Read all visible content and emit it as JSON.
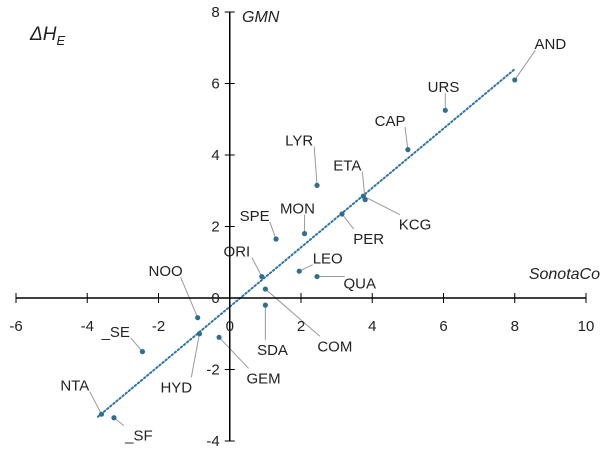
{
  "chart_data": {
    "type": "scatter",
    "xlim": [
      -6,
      10
    ],
    "ylim": [
      -4,
      8
    ],
    "x_ticks": [
      "-6",
      "-4",
      "-2",
      "0",
      "2",
      "4",
      "6",
      "8",
      "10"
    ],
    "y_ticks": [
      "-4",
      "-2",
      "0",
      "2",
      "4",
      "6",
      "8"
    ],
    "x_axis_label": "SonotaCo",
    "y_axis_label_top": "GMN",
    "y_axis_label_main": "ΔH",
    "y_axis_label_sub": "E",
    "grid": false,
    "point_color": "#2e6f90",
    "trendline": {
      "style": "dotted",
      "color": "#2e74a8",
      "x_range": [
        -3.7,
        8
      ]
    },
    "points": [
      {
        "name": "AND",
        "x": 8.0,
        "y": 6.1,
        "label_x": 9.0,
        "label_y": 7.1
      },
      {
        "name": "URS",
        "x": 6.05,
        "y": 5.25,
        "label_x": 6.0,
        "label_y": 5.9
      },
      {
        "name": "CAP",
        "x": 5.0,
        "y": 4.15,
        "label_x": 4.5,
        "label_y": 4.95
      },
      {
        "name": "LYR",
        "x": 2.45,
        "y": 3.15,
        "label_x": 1.95,
        "label_y": 4.4
      },
      {
        "name": "ETA",
        "x": 3.8,
        "y": 2.75,
        "label_x": 3.3,
        "label_y": 3.7
      },
      {
        "name": "KCG",
        "x": 3.75,
        "y": 2.85,
        "label_x": 5.2,
        "label_y": 2.05
      },
      {
        "name": "MON",
        "x": 2.1,
        "y": 1.8,
        "label_x": 1.9,
        "label_y": 2.5
      },
      {
        "name": "SPE",
        "x": 1.3,
        "y": 1.65,
        "label_x": 0.7,
        "label_y": 2.3
      },
      {
        "name": "PER",
        "x": 3.15,
        "y": 2.35,
        "label_x": 3.9,
        "label_y": 1.65
      },
      {
        "name": "ORI",
        "x": 0.9,
        "y": 0.6,
        "label_x": 0.2,
        "label_y": 1.3
      },
      {
        "name": "LEO",
        "x": 1.95,
        "y": 0.75,
        "label_x": 2.75,
        "label_y": 1.1
      },
      {
        "name": "QUA",
        "x": 2.45,
        "y": 0.6,
        "label_x": 3.65,
        "label_y": 0.4
      },
      {
        "name": "NOO",
        "x": -0.9,
        "y": -0.55,
        "label_x": -1.8,
        "label_y": 0.75
      },
      {
        "name": "_SE",
        "x": -2.45,
        "y": -1.5,
        "label_x": -3.2,
        "label_y": -0.95
      },
      {
        "name": "HYD",
        "x": -0.85,
        "y": -1.0,
        "label_x": -1.5,
        "label_y": -2.5
      },
      {
        "name": "GEM",
        "x": -0.3,
        "y": -1.1,
        "label_x": 0.95,
        "label_y": -2.25
      },
      {
        "name": "SDA",
        "x": 1.0,
        "y": -0.2,
        "label_x": 1.2,
        "label_y": -1.45
      },
      {
        "name": "COM",
        "x": 1.0,
        "y": 0.25,
        "label_x": 2.95,
        "label_y": -1.35
      },
      {
        "name": "NTA",
        "x": -3.6,
        "y": -3.25,
        "label_x": -4.35,
        "label_y": -2.45
      },
      {
        "name": "_SF",
        "x": -3.25,
        "y": -3.35,
        "label_x": -2.55,
        "label_y": -3.85
      }
    ]
  }
}
